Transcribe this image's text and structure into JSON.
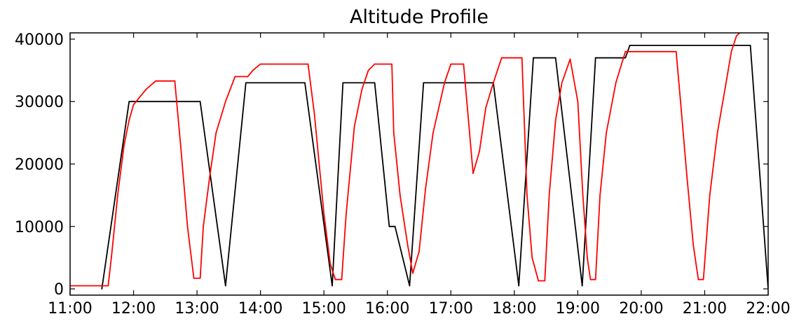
{
  "chart_data": {
    "type": "line",
    "title": "Altitude Profile",
    "xlabel": "",
    "ylabel": "",
    "x_unit": "time of day (decimal hours)",
    "xlim": [
      11.0,
      22.0
    ],
    "ylim": [
      -1000,
      41000
    ],
    "x_ticks": [
      {
        "value": 11,
        "label": "11:00"
      },
      {
        "value": 12,
        "label": "12:00"
      },
      {
        "value": 13,
        "label": "13:00"
      },
      {
        "value": 14,
        "label": "14:00"
      },
      {
        "value": 15,
        "label": "15:00"
      },
      {
        "value": 16,
        "label": "16:00"
      },
      {
        "value": 17,
        "label": "17:00"
      },
      {
        "value": 18,
        "label": "18:00"
      },
      {
        "value": 19,
        "label": "19:00"
      },
      {
        "value": 20,
        "label": "20:00"
      },
      {
        "value": 21,
        "label": "21:00"
      },
      {
        "value": 22,
        "label": "22:00"
      }
    ],
    "y_ticks": [
      {
        "value": 0,
        "label": "0"
      },
      {
        "value": 10000,
        "label": "10000"
      },
      {
        "value": 20000,
        "label": "20000"
      },
      {
        "value": 30000,
        "label": "30000"
      },
      {
        "value": 40000,
        "label": "40000"
      }
    ],
    "grid": false,
    "legend": "none",
    "series": [
      {
        "color": "#000000",
        "points": [
          [
            11.5,
            0
          ],
          [
            11.93,
            30000
          ],
          [
            13.05,
            30000
          ],
          [
            13.45,
            500
          ],
          [
            13.77,
            33000
          ],
          [
            14.7,
            33000
          ],
          [
            15.13,
            500
          ],
          [
            15.3,
            33000
          ],
          [
            15.8,
            33000
          ],
          [
            16.03,
            10000
          ],
          [
            16.12,
            10000
          ],
          [
            16.35,
            500
          ],
          [
            16.57,
            33000
          ],
          [
            17.67,
            33000
          ],
          [
            18.07,
            500
          ],
          [
            18.3,
            37000
          ],
          [
            18.65,
            37000
          ],
          [
            19.07,
            500
          ],
          [
            19.28,
            37000
          ],
          [
            19.75,
            37000
          ],
          [
            19.82,
            39000
          ],
          [
            21.72,
            39000
          ],
          [
            22.0,
            0
          ]
        ]
      },
      {
        "color": "#ff0000",
        "points": [
          [
            11.0,
            500
          ],
          [
            11.6,
            500
          ],
          [
            11.65,
            5000
          ],
          [
            11.75,
            15000
          ],
          [
            11.85,
            23000
          ],
          [
            11.93,
            27000
          ],
          [
            12.0,
            29500
          ],
          [
            12.2,
            32000
          ],
          [
            12.35,
            33300
          ],
          [
            12.65,
            33300
          ],
          [
            12.75,
            22000
          ],
          [
            12.85,
            10000
          ],
          [
            12.95,
            1700
          ],
          [
            13.05,
            1700
          ],
          [
            13.1,
            10000
          ],
          [
            13.2,
            18000
          ],
          [
            13.3,
            25000
          ],
          [
            13.45,
            30000
          ],
          [
            13.6,
            34000
          ],
          [
            13.8,
            34000
          ],
          [
            13.88,
            35000
          ],
          [
            14.0,
            36000
          ],
          [
            14.75,
            36000
          ],
          [
            14.85,
            28000
          ],
          [
            15.0,
            12000
          ],
          [
            15.1,
            4000
          ],
          [
            15.18,
            1500
          ],
          [
            15.28,
            1500
          ],
          [
            15.35,
            12000
          ],
          [
            15.48,
            26000
          ],
          [
            15.6,
            32000
          ],
          [
            15.7,
            35000
          ],
          [
            15.8,
            36000
          ],
          [
            16.07,
            36000
          ],
          [
            16.1,
            25000
          ],
          [
            16.2,
            15000
          ],
          [
            16.32,
            7000
          ],
          [
            16.4,
            2500
          ],
          [
            16.5,
            6000
          ],
          [
            16.6,
            16000
          ],
          [
            16.72,
            25000
          ],
          [
            16.9,
            33000
          ],
          [
            17.0,
            36000
          ],
          [
            17.2,
            36000
          ],
          [
            17.35,
            18500
          ],
          [
            17.45,
            22000
          ],
          [
            17.55,
            29000
          ],
          [
            17.67,
            33000
          ],
          [
            17.8,
            37000
          ],
          [
            18.12,
            37000
          ],
          [
            18.2,
            15000
          ],
          [
            18.28,
            5000
          ],
          [
            18.38,
            1300
          ],
          [
            18.48,
            1300
          ],
          [
            18.55,
            15000
          ],
          [
            18.65,
            27000
          ],
          [
            18.75,
            33000
          ],
          [
            18.88,
            36800
          ],
          [
            19.0,
            30000
          ],
          [
            19.08,
            15000
          ],
          [
            19.15,
            5000
          ],
          [
            19.2,
            1500
          ],
          [
            19.28,
            1500
          ],
          [
            19.35,
            15000
          ],
          [
            19.45,
            25000
          ],
          [
            19.6,
            33000
          ],
          [
            19.75,
            38000
          ],
          [
            20.55,
            38000
          ],
          [
            20.62,
            30000
          ],
          [
            20.72,
            18000
          ],
          [
            20.82,
            7000
          ],
          [
            20.9,
            1500
          ],
          [
            20.98,
            1500
          ],
          [
            21.08,
            15000
          ],
          [
            21.2,
            25000
          ],
          [
            21.32,
            32000
          ],
          [
            21.42,
            38000
          ],
          [
            21.5,
            40500
          ],
          [
            21.55,
            41000
          ]
        ]
      }
    ]
  }
}
